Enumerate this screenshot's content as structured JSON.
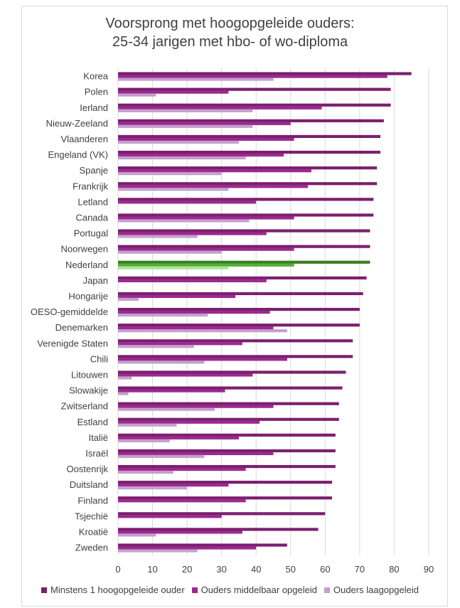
{
  "chart_data": {
    "type": "bar",
    "orientation": "horizontal",
    "title_lines": [
      "Voorsprong met hoogopgeleide ouders:",
      "25-34 jarigen met hbo- of wo-diploma"
    ],
    "categories": [
      "Korea",
      "Polen",
      "Ierland",
      "Nieuw-Zeeland",
      "Vlaanderen",
      "Engeland (VK)",
      "Spanje",
      "Frankrijk",
      "Letland",
      "Canada",
      "Portugal",
      "Noorwegen",
      "Nederland",
      "Japan",
      "Hongarije",
      "OESO-gemiddelde",
      "Denemarken",
      "Verenigde Staten",
      "Chili",
      "Litouwen",
      "Slowakije",
      "Zwitserland",
      "Estland",
      "Italië",
      "Israël",
      "Oostenrijk",
      "Duitsland",
      "Finland",
      "Tsjechië",
      "Kroatië",
      "Zweden"
    ],
    "series": [
      {
        "name": "Minstens 1 hoogopgeleide ouder",
        "color": "#7b1f6e",
        "values": [
          85,
          79,
          79,
          77,
          76,
          76,
          75,
          75,
          74,
          74,
          73,
          73,
          73,
          72,
          71,
          70,
          70,
          68,
          68,
          66,
          65,
          64,
          64,
          63,
          63,
          63,
          62,
          62,
          60,
          58,
          49
        ]
      },
      {
        "name": "Ouders middelbaar opgeleid",
        "color": "#9b2a8f",
        "values": [
          78,
          32,
          59,
          50,
          51,
          48,
          56,
          55,
          40,
          51,
          43,
          51,
          51,
          43,
          34,
          44,
          45,
          36,
          49,
          39,
          31,
          45,
          41,
          35,
          45,
          37,
          32,
          37,
          30,
          36,
          40
        ]
      },
      {
        "name": "Ouders laagopgeleid",
        "color": "#c5a0cc",
        "values": [
          45,
          11,
          39,
          39,
          35,
          37,
          30,
          32,
          null,
          38,
          23,
          30,
          32,
          null,
          6,
          26,
          49,
          22,
          25,
          4,
          3,
          28,
          17,
          15,
          25,
          16,
          20,
          null,
          null,
          11,
          23
        ]
      }
    ],
    "highlight": {
      "category": "Nederland",
      "colors": [
        "#3a7d22",
        "#4fb236",
        "#b4e39a"
      ]
    },
    "xlim": [
      0,
      90
    ],
    "xticks": [
      "0",
      "10",
      "20",
      "30",
      "40",
      "50",
      "60",
      "70",
      "80",
      "90"
    ],
    "grid": true,
    "legend_position": "bottom"
  }
}
